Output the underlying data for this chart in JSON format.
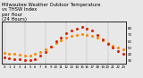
{
  "title_line1": "Milwaukee Weather Outdoor Temperature",
  "title_line2": "vs THSW Index",
  "title_line3": "per Hour",
  "title_line4": "(24 Hours)",
  "title_fontsize": 3.8,
  "background_color": "#e8e8e8",
  "plot_bg_color": "#e8e8e8",
  "hours": [
    0,
    1,
    2,
    3,
    4,
    5,
    6,
    7,
    8,
    9,
    10,
    11,
    12,
    13,
    14,
    15,
    16,
    17,
    18,
    19,
    20,
    21,
    22,
    23
  ],
  "temp": [
    42,
    41,
    40,
    39,
    38,
    38,
    40,
    43,
    47,
    52,
    57,
    61,
    65,
    68,
    70,
    71,
    70,
    68,
    65,
    61,
    57,
    53,
    50,
    47
  ],
  "thsw": [
    35,
    34,
    33,
    32,
    31,
    31,
    33,
    38,
    44,
    52,
    60,
    66,
    72,
    77,
    80,
    82,
    80,
    76,
    70,
    63,
    56,
    50,
    45,
    41
  ],
  "temp_color": "#ff8800",
  "thsw_color": "#dd2200",
  "ylim": [
    25,
    90
  ],
  "yticks_right": [
    30,
    40,
    50,
    60,
    70,
    80
  ],
  "ytick_labels_right": [
    "30",
    "40",
    "50",
    "60",
    "70",
    "80"
  ],
  "grid_hours": [
    0,
    4,
    8,
    12,
    16,
    20
  ],
  "xtick_labels": [
    "0",
    "1",
    "2",
    "3",
    "4",
    "5",
    "6",
    "7",
    "8",
    "9",
    "10",
    "11",
    "12",
    "13",
    "14",
    "15",
    "16",
    "17",
    "18",
    "19",
    "20",
    "21",
    "22",
    "23"
  ],
  "marker_size": 1.2,
  "tick_fontsize": 2.8,
  "figsize": [
    1.6,
    0.87
  ],
  "dpi": 100
}
